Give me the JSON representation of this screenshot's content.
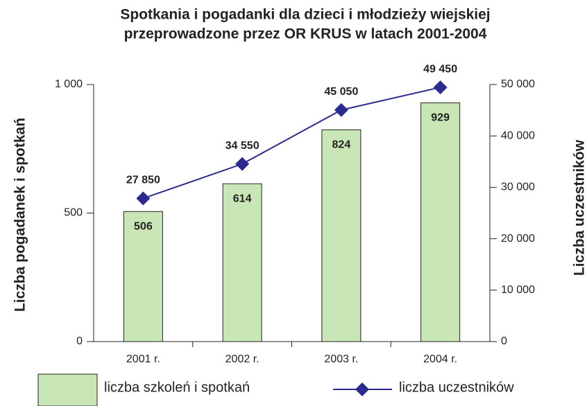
{
  "chart_data": {
    "type": "bar",
    "title": "Spotkania i pogadanki dla dzieci i młodzieży wiejskiej",
    "subtitle": "przeprowadzone przez OR KRUS w latach 2001-2004",
    "y_label": "Liczba pogadanek i spotkań",
    "y2_label": "Liczba uczestników",
    "categories": [
      "2001 r.",
      "2002 r.",
      "2003 r.",
      "2004 r."
    ],
    "series": [
      {
        "name": "liczba szkoleń i spotkań",
        "type": "bar",
        "color": "#c9e6b6",
        "values": [
          506,
          614,
          824,
          929
        ]
      },
      {
        "name": "liczba uczestników",
        "type": "line",
        "axis": "y2",
        "color": "#2b2b8f",
        "values": [
          27850,
          34550,
          45050,
          49450
        ],
        "value_labels": [
          "27 850",
          "34 550",
          "45 050",
          "49 450"
        ]
      }
    ],
    "ylim": [
      0,
      1000
    ],
    "yticks": [
      0,
      500,
      {
        "value": 1000,
        "label": "1 000"
      }
    ],
    "y2lim": [
      0,
      50000
    ],
    "y2ticks": [
      0,
      {
        "value": 10000,
        "label": "10 000"
      },
      {
        "value": 20000,
        "label": "20 000"
      },
      {
        "value": 30000,
        "label": "30 000"
      },
      {
        "value": 40000,
        "label": "40 000"
      },
      {
        "value": 50000,
        "label": "50 000"
      }
    ],
    "legend": "bottom"
  }
}
